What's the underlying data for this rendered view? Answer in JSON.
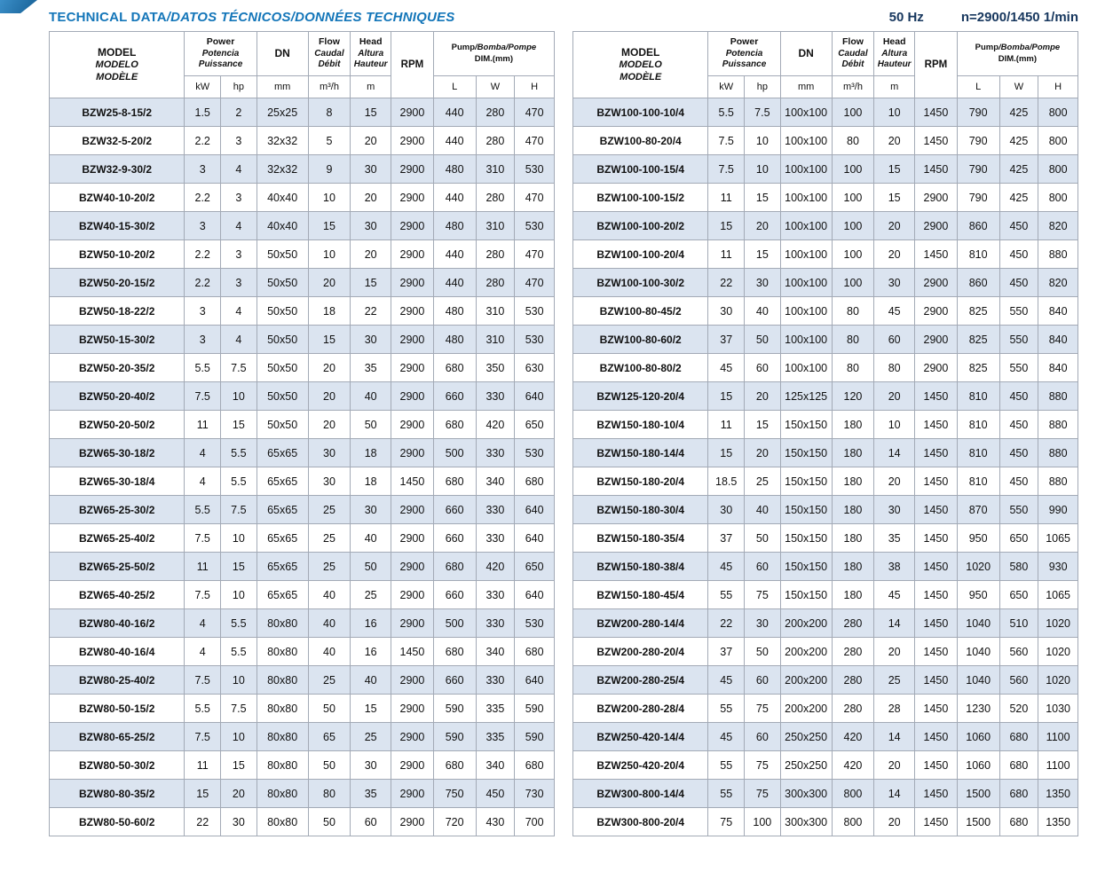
{
  "header": {
    "title_en": "TECHNICAL DATA",
    "title_rest": "/DATOS TÉCNICOS/DONNÉES TECHNIQUES",
    "frequency": "50 Hz",
    "speed": "n=2900/1450 1/min"
  },
  "columns": {
    "model": [
      "MODEL",
      "MODELO",
      "MODÈLE"
    ],
    "power": [
      "Power",
      "Potencia",
      "Puissance"
    ],
    "dn": "DN",
    "flow": [
      "Flow",
      "Caudal",
      "Débit"
    ],
    "head": [
      "Head",
      "Altura",
      "Hauteur"
    ],
    "rpm": "RPM",
    "dim_line1a": "Pump",
    "dim_line1b": "/Bomba/Pompe",
    "dim_line2": "DIM.(mm)",
    "units": {
      "kw": "kW",
      "hp": "hp",
      "mm": "mm",
      "flow": "m³/h",
      "head": "m",
      "l": "L",
      "w": "W",
      "h": "H"
    }
  },
  "left_table": {
    "rows": [
      [
        "BZW25-8-15/2",
        "1.5",
        "2",
        "25x25",
        "8",
        "15",
        "2900",
        "440",
        "280",
        "470"
      ],
      [
        "BZW32-5-20/2",
        "2.2",
        "3",
        "32x32",
        "5",
        "20",
        "2900",
        "440",
        "280",
        "470"
      ],
      [
        "BZW32-9-30/2",
        "3",
        "4",
        "32x32",
        "9",
        "30",
        "2900",
        "480",
        "310",
        "530"
      ],
      [
        "BZW40-10-20/2",
        "2.2",
        "3",
        "40x40",
        "10",
        "20",
        "2900",
        "440",
        "280",
        "470"
      ],
      [
        "BZW40-15-30/2",
        "3",
        "4",
        "40x40",
        "15",
        "30",
        "2900",
        "480",
        "310",
        "530"
      ],
      [
        "BZW50-10-20/2",
        "2.2",
        "3",
        "50x50",
        "10",
        "20",
        "2900",
        "440",
        "280",
        "470"
      ],
      [
        "BZW50-20-15/2",
        "2.2",
        "3",
        "50x50",
        "20",
        "15",
        "2900",
        "440",
        "280",
        "470"
      ],
      [
        "BZW50-18-22/2",
        "3",
        "4",
        "50x50",
        "18",
        "22",
        "2900",
        "480",
        "310",
        "530"
      ],
      [
        "BZW50-15-30/2",
        "3",
        "4",
        "50x50",
        "15",
        "30",
        "2900",
        "480",
        "310",
        "530"
      ],
      [
        "BZW50-20-35/2",
        "5.5",
        "7.5",
        "50x50",
        "20",
        "35",
        "2900",
        "680",
        "350",
        "630"
      ],
      [
        "BZW50-20-40/2",
        "7.5",
        "10",
        "50x50",
        "20",
        "40",
        "2900",
        "660",
        "330",
        "640"
      ],
      [
        "BZW50-20-50/2",
        "11",
        "15",
        "50x50",
        "20",
        "50",
        "2900",
        "680",
        "420",
        "650"
      ],
      [
        "BZW65-30-18/2",
        "4",
        "5.5",
        "65x65",
        "30",
        "18",
        "2900",
        "500",
        "330",
        "530"
      ],
      [
        "BZW65-30-18/4",
        "4",
        "5.5",
        "65x65",
        "30",
        "18",
        "1450",
        "680",
        "340",
        "680"
      ],
      [
        "BZW65-25-30/2",
        "5.5",
        "7.5",
        "65x65",
        "25",
        "30",
        "2900",
        "660",
        "330",
        "640"
      ],
      [
        "BZW65-25-40/2",
        "7.5",
        "10",
        "65x65",
        "25",
        "40",
        "2900",
        "660",
        "330",
        "640"
      ],
      [
        "BZW65-25-50/2",
        "11",
        "15",
        "65x65",
        "25",
        "50",
        "2900",
        "680",
        "420",
        "650"
      ],
      [
        "BZW65-40-25/2",
        "7.5",
        "10",
        "65x65",
        "40",
        "25",
        "2900",
        "660",
        "330",
        "640"
      ],
      [
        "BZW80-40-16/2",
        "4",
        "5.5",
        "80x80",
        "40",
        "16",
        "2900",
        "500",
        "330",
        "530"
      ],
      [
        "BZW80-40-16/4",
        "4",
        "5.5",
        "80x80",
        "40",
        "16",
        "1450",
        "680",
        "340",
        "680"
      ],
      [
        "BZW80-25-40/2",
        "7.5",
        "10",
        "80x80",
        "25",
        "40",
        "2900",
        "660",
        "330",
        "640"
      ],
      [
        "BZW80-50-15/2",
        "5.5",
        "7.5",
        "80x80",
        "50",
        "15",
        "2900",
        "590",
        "335",
        "590"
      ],
      [
        "BZW80-65-25/2",
        "7.5",
        "10",
        "80x80",
        "65",
        "25",
        "2900",
        "590",
        "335",
        "590"
      ],
      [
        "BZW80-50-30/2",
        "11",
        "15",
        "80x80",
        "50",
        "30",
        "2900",
        "680",
        "340",
        "680"
      ],
      [
        "BZW80-80-35/2",
        "15",
        "20",
        "80x80",
        "80",
        "35",
        "2900",
        "750",
        "450",
        "730"
      ],
      [
        "BZW80-50-60/2",
        "22",
        "30",
        "80x80",
        "50",
        "60",
        "2900",
        "720",
        "430",
        "700"
      ]
    ]
  },
  "right_table": {
    "rows": [
      [
        "BZW100-100-10/4",
        "5.5",
        "7.5",
        "100x100",
        "100",
        "10",
        "1450",
        "790",
        "425",
        "800"
      ],
      [
        "BZW100-80-20/4",
        "7.5",
        "10",
        "100x100",
        "80",
        "20",
        "1450",
        "790",
        "425",
        "800"
      ],
      [
        "BZW100-100-15/4",
        "7.5",
        "10",
        "100x100",
        "100",
        "15",
        "1450",
        "790",
        "425",
        "800"
      ],
      [
        "BZW100-100-15/2",
        "11",
        "15",
        "100x100",
        "100",
        "15",
        "2900",
        "790",
        "425",
        "800"
      ],
      [
        "BZW100-100-20/2",
        "15",
        "20",
        "100x100",
        "100",
        "20",
        "2900",
        "860",
        "450",
        "820"
      ],
      [
        "BZW100-100-20/4",
        "11",
        "15",
        "100x100",
        "100",
        "20",
        "1450",
        "810",
        "450",
        "880"
      ],
      [
        "BZW100-100-30/2",
        "22",
        "30",
        "100x100",
        "100",
        "30",
        "2900",
        "860",
        "450",
        "820"
      ],
      [
        "BZW100-80-45/2",
        "30",
        "40",
        "100x100",
        "80",
        "45",
        "2900",
        "825",
        "550",
        "840"
      ],
      [
        "BZW100-80-60/2",
        "37",
        "50",
        "100x100",
        "80",
        "60",
        "2900",
        "825",
        "550",
        "840"
      ],
      [
        "BZW100-80-80/2",
        "45",
        "60",
        "100x100",
        "80",
        "80",
        "2900",
        "825",
        "550",
        "840"
      ],
      [
        "BZW125-120-20/4",
        "15",
        "20",
        "125x125",
        "120",
        "20",
        "1450",
        "810",
        "450",
        "880"
      ],
      [
        "BZW150-180-10/4",
        "11",
        "15",
        "150x150",
        "180",
        "10",
        "1450",
        "810",
        "450",
        "880"
      ],
      [
        "BZW150-180-14/4",
        "15",
        "20",
        "150x150",
        "180",
        "14",
        "1450",
        "810",
        "450",
        "880"
      ],
      [
        "BZW150-180-20/4",
        "18.5",
        "25",
        "150x150",
        "180",
        "20",
        "1450",
        "810",
        "450",
        "880"
      ],
      [
        "BZW150-180-30/4",
        "30",
        "40",
        "150x150",
        "180",
        "30",
        "1450",
        "870",
        "550",
        "990"
      ],
      [
        "BZW150-180-35/4",
        "37",
        "50",
        "150x150",
        "180",
        "35",
        "1450",
        "950",
        "650",
        "1065"
      ],
      [
        "BZW150-180-38/4",
        "45",
        "60",
        "150x150",
        "180",
        "38",
        "1450",
        "1020",
        "580",
        "930"
      ],
      [
        "BZW150-180-45/4",
        "55",
        "75",
        "150x150",
        "180",
        "45",
        "1450",
        "950",
        "650",
        "1065"
      ],
      [
        "BZW200-280-14/4",
        "22",
        "30",
        "200x200",
        "280",
        "14",
        "1450",
        "1040",
        "510",
        "1020"
      ],
      [
        "BZW200-280-20/4",
        "37",
        "50",
        "200x200",
        "280",
        "20",
        "1450",
        "1040",
        "560",
        "1020"
      ],
      [
        "BZW200-280-25/4",
        "45",
        "60",
        "200x200",
        "280",
        "25",
        "1450",
        "1040",
        "560",
        "1020"
      ],
      [
        "BZW200-280-28/4",
        "55",
        "75",
        "200x200",
        "280",
        "28",
        "1450",
        "1230",
        "520",
        "1030"
      ],
      [
        "BZW250-420-14/4",
        "45",
        "60",
        "250x250",
        "420",
        "14",
        "1450",
        "1060",
        "680",
        "1100"
      ],
      [
        "BZW250-420-20/4",
        "55",
        "75",
        "250x250",
        "420",
        "20",
        "1450",
        "1060",
        "680",
        "1100"
      ],
      [
        "BZW300-800-14/4",
        "55",
        "75",
        "300x300",
        "800",
        "14",
        "1450",
        "1500",
        "680",
        "1350"
      ],
      [
        "BZW300-800-20/4",
        "75",
        "100",
        "300x300",
        "800",
        "20",
        "1450",
        "1500",
        "680",
        "1350"
      ]
    ]
  },
  "colors": {
    "title_blue": "#1476b9",
    "navy": "#17375e",
    "row_shade": "#dbe4f0",
    "border": "#a3aab6"
  }
}
